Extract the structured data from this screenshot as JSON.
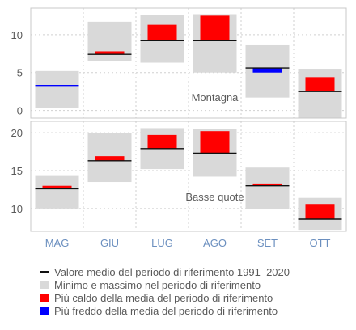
{
  "chart_data": [
    {
      "type": "bar",
      "panel": "top",
      "annotation": "Montagna",
      "categories": [
        "MAG",
        "GIU",
        "LUG",
        "AGO",
        "SET",
        "OTT"
      ],
      "ylim": [
        -1,
        13.5
      ],
      "yticks": [
        0,
        5,
        10
      ],
      "grid": true,
      "range_min": [
        0.3,
        6.5,
        6.3,
        5.0,
        1.7,
        -1.0
      ],
      "range_max": [
        5.2,
        11.7,
        12.6,
        12.7,
        8.6,
        5.5
      ],
      "mean": [
        3.3,
        7.4,
        9.2,
        9.2,
        5.6,
        2.5
      ],
      "observed": [
        3.3,
        7.8,
        11.3,
        12.5,
        5.0,
        4.4
      ],
      "xlabel": "",
      "ylabel": ""
    },
    {
      "type": "bar",
      "panel": "bottom",
      "annotation": "Basse quote",
      "categories": [
        "MAG",
        "GIU",
        "LUG",
        "AGO",
        "SET",
        "OTT"
      ],
      "ylim": [
        7,
        21.5
      ],
      "yticks": [
        10,
        15,
        20
      ],
      "grid": true,
      "range_min": [
        10.0,
        13.5,
        15.2,
        14.2,
        9.9,
        7.2
      ],
      "range_max": [
        14.4,
        20.0,
        20.6,
        20.5,
        15.4,
        11.4
      ],
      "mean": [
        12.6,
        16.3,
        17.9,
        17.3,
        13.0,
        8.6
      ],
      "observed": [
        13.0,
        16.9,
        19.7,
        20.2,
        13.3,
        10.6
      ],
      "xlabel": "",
      "ylabel": ""
    }
  ],
  "legend": [
    {
      "label": "Valore medio del periodo di riferimento 1991–2020",
      "swatch": "line",
      "color": "#111111"
    },
    {
      "label": "Minimo e massimo nel periodo di riferimento",
      "swatch": "box",
      "color": "#d9d9d9"
    },
    {
      "label": "Più caldo della media del periodo di riferimento",
      "swatch": "box",
      "color": "#ff0000"
    },
    {
      "label": "Più freddo della media del periodo di riferimento",
      "swatch": "box",
      "color": "#0000ff"
    }
  ],
  "colors": {
    "range": "#d9d9d9",
    "warmer": "#ff0000",
    "colder": "#0000ff",
    "mean_line": "#111111",
    "axis_text": "#5a5a5a",
    "category_text": "#6b8fbf",
    "frame": "#c8c8c8",
    "grid": "#d0d0d0"
  },
  "legend_swatch_names": [
    "mean-line-swatch-icon",
    "range-swatch-icon",
    "warmer-swatch-icon",
    "colder-swatch-icon"
  ]
}
